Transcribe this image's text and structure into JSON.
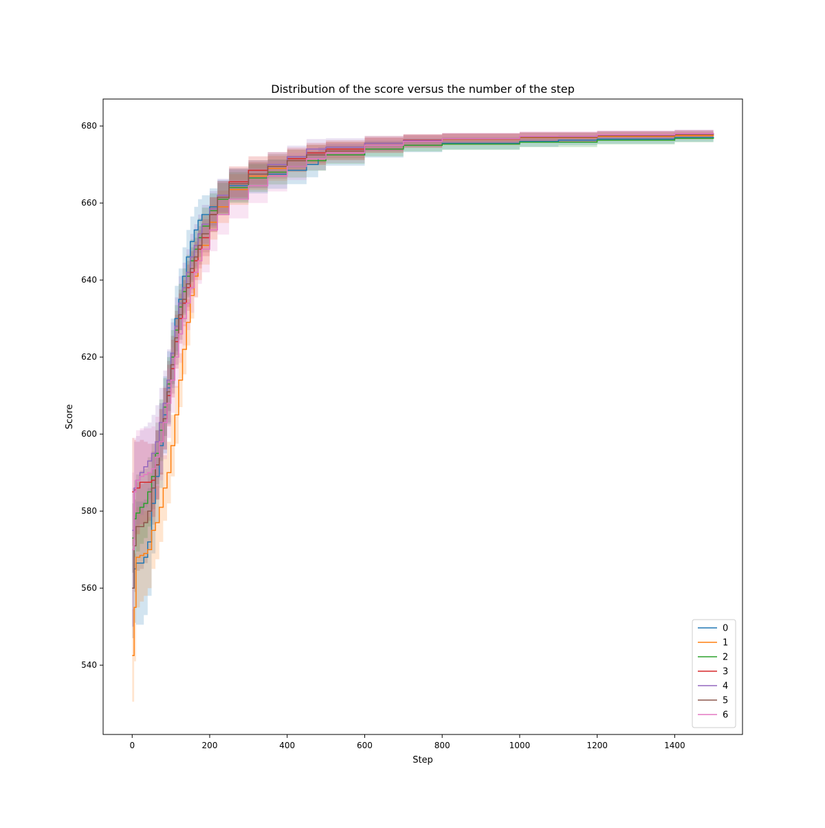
{
  "chart_data": {
    "type": "line",
    "title": "Distribution of the score versus the number of the step",
    "xlabel": "Step",
    "ylabel": "Score",
    "xlim": [
      -75,
      1575
    ],
    "ylim": [
      522,
      687
    ],
    "xticks": [
      0,
      200,
      400,
      600,
      800,
      1000,
      1200,
      1400
    ],
    "yticks": [
      540,
      560,
      580,
      600,
      620,
      640,
      660,
      680
    ],
    "legend_placement": "lower-right",
    "shaded_band": true,
    "grid": false,
    "series": [
      {
        "name": "0",
        "color": "#1f77b4",
        "x": [
          0,
          5,
          10,
          20,
          30,
          40,
          50,
          60,
          70,
          80,
          90,
          100,
          110,
          120,
          130,
          140,
          150,
          160,
          170,
          180,
          200,
          220,
          250,
          300,
          350,
          400,
          450,
          480,
          500,
          600,
          700,
          800,
          1000,
          1100,
          1200,
          1400,
          1500
        ],
        "values": [
          560,
          565,
          566.5,
          566.5,
          568,
          572,
          582,
          589,
          597,
          605,
          612,
          621,
          630,
          635,
          641,
          646,
          650,
          653,
          655.5,
          657,
          659,
          661.5,
          664.5,
          666.5,
          667.5,
          668.5,
          670,
          671.5,
          672.5,
          674,
          675,
          675.5,
          676,
          676.3,
          676.6,
          677,
          677.2
        ],
        "band": [
          10,
          14,
          16,
          16,
          15,
          14,
          13,
          12,
          11,
          10,
          9.5,
          9,
          8.5,
          8,
          7.5,
          7,
          6.5,
          6,
          5.5,
          5,
          4.8,
          4.5,
          4.2,
          4,
          3.8,
          3.6,
          3.3,
          3,
          2.8,
          2.2,
          1.8,
          1.6,
          1.4,
          1.3,
          1.2,
          1.1,
          1
        ]
      },
      {
        "name": "1",
        "color": "#ff7f0e",
        "x": [
          0,
          5,
          10,
          20,
          30,
          40,
          50,
          60,
          70,
          80,
          90,
          100,
          110,
          120,
          130,
          140,
          150,
          160,
          170,
          180,
          200,
          220,
          250,
          300,
          350,
          400,
          450,
          500,
          600,
          700,
          800,
          1000,
          1200,
          1400,
          1500
        ],
        "values": [
          542.5,
          555,
          568,
          568.5,
          569,
          570,
          575,
          577,
          581,
          586,
          590,
          597,
          605,
          614,
          622,
          629,
          636,
          641,
          645,
          649,
          655,
          659,
          663.5,
          667,
          669,
          671,
          672.5,
          673.5,
          675,
          676,
          676.5,
          677,
          677.3,
          677.5,
          677.6
        ],
        "band": [
          12,
          14,
          13,
          12,
          11,
          10,
          10,
          9.5,
          9,
          8.5,
          8,
          8,
          7.5,
          7,
          6.5,
          6,
          6,
          5.5,
          5,
          5,
          4.5,
          4.2,
          4,
          3.6,
          3.2,
          2.9,
          2.6,
          2.4,
          2,
          1.7,
          1.5,
          1.3,
          1.1,
          1,
          1
        ]
      },
      {
        "name": "2",
        "color": "#2ca02c",
        "x": [
          0,
          5,
          10,
          20,
          30,
          40,
          50,
          60,
          70,
          80,
          90,
          100,
          110,
          120,
          130,
          140,
          150,
          160,
          170,
          180,
          200,
          220,
          250,
          300,
          350,
          400,
          450,
          500,
          600,
          700,
          800,
          1000,
          1200,
          1400,
          1500
        ],
        "values": [
          573,
          578,
          579.5,
          581,
          582,
          585,
          589,
          595,
          601,
          607,
          613,
          620,
          627,
          633,
          637,
          641,
          645,
          648,
          651,
          654,
          658,
          661,
          664,
          666.5,
          668,
          669.5,
          671,
          672.5,
          674,
          675,
          675.3,
          675.8,
          676.3,
          676.8,
          677
        ],
        "band": [
          9,
          10,
          10,
          9.5,
          9,
          9,
          8.5,
          8,
          8,
          7.5,
          7,
          7,
          6.5,
          6,
          6,
          5.5,
          5.5,
          5,
          5,
          4.8,
          4.5,
          4.2,
          4,
          3.6,
          3.2,
          2.9,
          2.6,
          2.3,
          1.9,
          1.6,
          1.5,
          1.3,
          1.1,
          1,
          1
        ]
      },
      {
        "name": "3",
        "color": "#d62728",
        "x": [
          0,
          5,
          10,
          20,
          30,
          40,
          50,
          60,
          70,
          80,
          90,
          100,
          110,
          120,
          130,
          140,
          150,
          160,
          170,
          180,
          200,
          220,
          250,
          300,
          350,
          400,
          450,
          500,
          600,
          700,
          800,
          1000,
          1200,
          1400,
          1500
        ],
        "values": [
          585,
          585.5,
          586,
          587.5,
          587.5,
          587.5,
          588,
          592,
          598,
          604,
          610,
          617,
          624,
          630,
          634,
          638,
          642,
          645,
          648,
          651,
          657,
          661.5,
          665.5,
          668.5,
          670,
          671.5,
          673,
          674,
          675.5,
          676.3,
          676.7,
          677.2,
          677.6,
          677.9,
          678
        ],
        "band": [
          14,
          13,
          12,
          11,
          10.5,
          10,
          9.5,
          9,
          8.5,
          8,
          8,
          7.5,
          7,
          6.5,
          6,
          6,
          5.5,
          5,
          5,
          4.8,
          4.5,
          4.2,
          4,
          3.6,
          3.2,
          2.9,
          2.6,
          2.3,
          1.9,
          1.6,
          1.4,
          1.2,
          1.1,
          1,
          1
        ]
      },
      {
        "name": "4",
        "color": "#9467bd",
        "x": [
          0,
          5,
          10,
          20,
          30,
          40,
          50,
          60,
          70,
          80,
          90,
          100,
          110,
          120,
          130,
          140,
          150,
          160,
          170,
          180,
          200,
          220,
          250,
          300,
          350,
          400,
          450,
          500,
          600,
          700,
          800,
          1000,
          1200,
          1400,
          1500
        ],
        "values": [
          575,
          586,
          588,
          590,
          591.5,
          593,
          595,
          598,
          603,
          608,
          614,
          621,
          628,
          634,
          638,
          642,
          646,
          649,
          652,
          654.5,
          658.5,
          662,
          665,
          667.5,
          670,
          672,
          674,
          674.5,
          675.5,
          676.2,
          676.7,
          677.2,
          677.6,
          678,
          678.2
        ],
        "band": [
          11,
          12,
          11.5,
          11,
          10.5,
          10,
          10,
          9.5,
          9,
          8.5,
          8,
          8,
          7.5,
          7,
          6.5,
          6,
          6,
          5.5,
          5,
          5,
          4.6,
          4.3,
          4,
          3.6,
          3.2,
          2.9,
          2.6,
          2.3,
          1.9,
          1.6,
          1.4,
          1.2,
          1.1,
          1,
          1
        ]
      },
      {
        "name": "5",
        "color": "#8c564b",
        "x": [
          0,
          5,
          10,
          20,
          30,
          40,
          50,
          60,
          70,
          80,
          90,
          100,
          110,
          120,
          130,
          140,
          150,
          160,
          170,
          180,
          200,
          220,
          250,
          300,
          350,
          400,
          450,
          500,
          600,
          700,
          800,
          1000,
          1200,
          1400,
          1500
        ],
        "values": [
          560,
          571,
          576,
          576,
          577,
          580,
          586,
          592,
          598,
          604,
          611,
          618,
          625,
          631,
          635,
          639,
          643,
          646,
          649,
          652,
          657,
          661.5,
          665,
          667.5,
          669.5,
          671,
          672.5,
          673.5,
          675,
          676,
          676.6,
          677.1,
          677.5,
          677.8,
          678
        ],
        "band": [
          13,
          12,
          11.5,
          11,
          10.5,
          10,
          9.5,
          9,
          8.5,
          8,
          8,
          7.5,
          7,
          6.5,
          6,
          6,
          5.5,
          5,
          5,
          4.8,
          4.5,
          4.2,
          4,
          3.6,
          3.2,
          2.9,
          2.6,
          2.3,
          1.9,
          1.6,
          1.4,
          1.2,
          1.1,
          1,
          1
        ]
      },
      {
        "name": "6",
        "color": "#e377c2",
        "x": [
          0,
          5,
          10,
          20,
          30,
          40,
          50,
          60,
          70,
          80,
          90,
          100,
          110,
          120,
          130,
          140,
          150,
          160,
          170,
          180,
          200,
          220,
          250,
          300,
          350,
          400,
          450,
          500,
          600,
          700,
          800,
          1000,
          1200,
          1400,
          1500
        ],
        "values": [
          570,
          585,
          588,
          589,
          589.5,
          590,
          591,
          594,
          598,
          603,
          608,
          614,
          620,
          626,
          630,
          634,
          638,
          642,
          645,
          648,
          653,
          657,
          661,
          664.5,
          667,
          669.5,
          671.5,
          673,
          675,
          676,
          676.7,
          677.3,
          677.7,
          678,
          678.2
        ],
        "band": [
          20,
          14,
          13,
          12.5,
          12,
          11.5,
          11,
          10.5,
          10,
          9.5,
          9,
          8.5,
          8,
          7.5,
          7,
          7,
          6.5,
          6.5,
          6,
          6,
          5.5,
          5.2,
          5,
          4.5,
          4,
          3.5,
          3,
          2.6,
          2,
          1.7,
          1.5,
          1.3,
          1.1,
          1,
          1
        ]
      }
    ]
  }
}
